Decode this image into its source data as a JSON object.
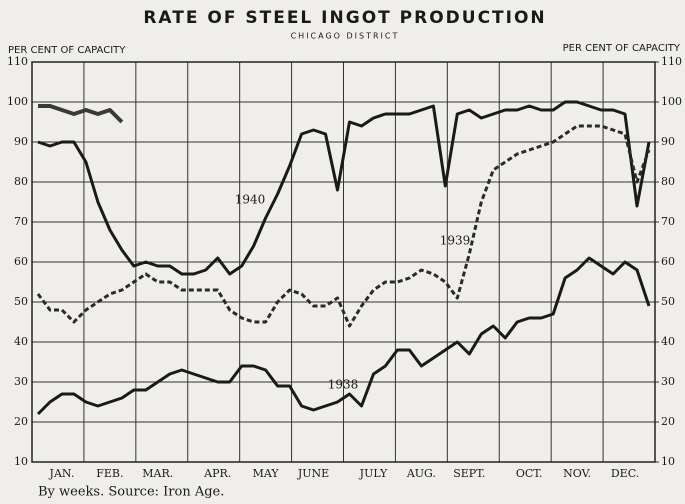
{
  "chart_data": {
    "type": "line",
    "title": "RATE OF STEEL INGOT PRODUCTION",
    "subtitle": "CHICAGO DISTRICT",
    "ylabel": "PER CENT OF CAPACITY",
    "y2label": "PER CENT OF CAPACITY",
    "caption": "By weeks.  Source:  Iron Age.",
    "categories": [
      null,
      null,
      "JAN.",
      null,
      null,
      null,
      "FEB.",
      null,
      null,
      null,
      "MAR.",
      null,
      null,
      null,
      null,
      "APR.",
      null,
      null,
      null,
      "MAY",
      null,
      null,
      null,
      "JUNE",
      null,
      null,
      null,
      null,
      "JULY",
      null,
      null,
      null,
      "AUG.",
      null,
      null,
      null,
      "SEPT.",
      null,
      null,
      null,
      null,
      "OCT.",
      null,
      null,
      null,
      "NOV.",
      null,
      null,
      null,
      "DEC.",
      null,
      null
    ],
    "ylim": [
      10,
      110
    ],
    "yticks": [
      10,
      20,
      30,
      40,
      50,
      60,
      70,
      80,
      90,
      100,
      110
    ],
    "y2lim": [
      10,
      110
    ],
    "y2ticks": [
      10,
      20,
      30,
      40,
      50,
      60,
      70,
      80,
      90,
      100,
      110
    ],
    "grid": true,
    "annotations": [
      "1940",
      "1939",
      "1938"
    ],
    "series": [
      {
        "name": "1940",
        "color": "#1a1a1a",
        "style": "solid",
        "values": [
          90,
          89,
          90,
          90,
          85,
          75,
          68,
          63,
          59,
          60,
          59,
          59,
          57,
          57,
          58,
          61,
          57,
          59,
          64,
          71,
          77,
          84,
          92,
          93,
          92,
          78,
          95,
          94,
          96,
          97,
          97,
          97,
          98,
          99,
          79,
          97,
          98,
          96,
          97,
          98,
          98,
          99,
          98,
          98,
          100,
          100,
          99,
          98,
          98,
          97,
          74,
          90
        ]
      },
      {
        "name": "1939",
        "color": "#2a2a2a",
        "style": "dashed",
        "values": [
          52,
          48,
          48,
          45,
          48,
          50,
          52,
          53,
          55,
          57,
          55,
          55,
          53,
          53,
          53,
          53,
          48,
          46,
          45,
          45,
          50,
          53,
          52,
          49,
          49,
          51,
          44,
          49,
          53,
          55,
          55,
          56,
          58,
          57,
          55,
          51,
          62,
          75,
          83,
          85,
          87,
          88,
          89,
          90,
          92,
          94,
          94,
          94,
          93,
          92,
          80,
          88
        ]
      },
      {
        "name": "1938",
        "color": "#1a1a1a",
        "style": "solid",
        "values": [
          22,
          25,
          27,
          27,
          25,
          24,
          25,
          26,
          28,
          28,
          30,
          32,
          33,
          32,
          31,
          30,
          30,
          34,
          34,
          33,
          29,
          29,
          24,
          23,
          24,
          25,
          27,
          24,
          32,
          34,
          38,
          38,
          34,
          36,
          38,
          40,
          37,
          42,
          44,
          41,
          45,
          46,
          46,
          47,
          56,
          58,
          61,
          59,
          57,
          60,
          58,
          49
        ]
      },
      {
        "color": "#3a3a3a",
        "style": "double",
        "values": [
          99,
          99,
          98,
          97,
          98,
          97,
          98,
          95,
          null,
          null,
          null,
          null,
          null,
          null,
          null,
          null,
          null,
          null,
          null,
          null,
          null,
          null,
          null,
          null,
          null,
          null,
          null,
          null,
          null,
          null,
          null,
          null,
          null,
          null,
          null,
          null,
          null,
          null,
          null,
          null,
          null,
          null,
          null,
          null,
          null,
          null,
          null,
          null,
          null,
          null,
          null,
          null
        ]
      }
    ]
  }
}
